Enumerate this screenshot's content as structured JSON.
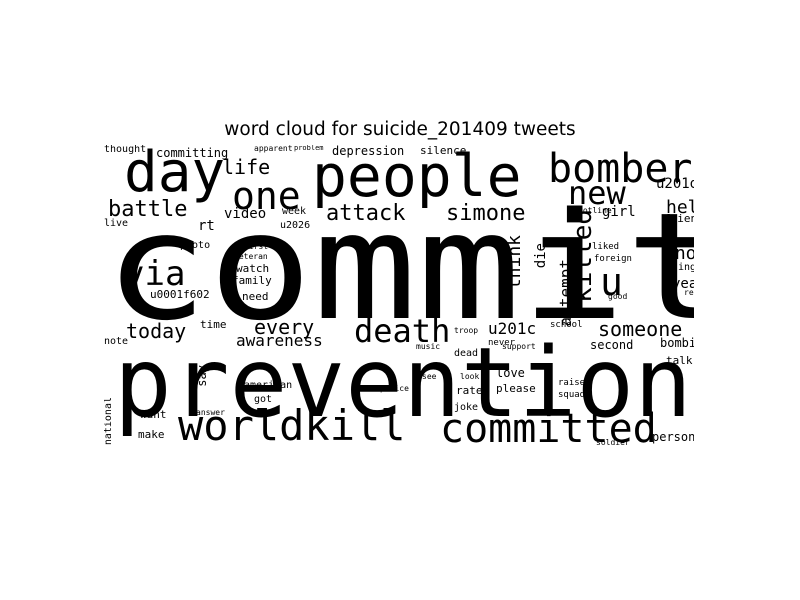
{
  "title": "word cloud for suicide_201409 tweets",
  "words": [
    "commit",
    "prevention",
    "people",
    "day",
    "bomber",
    "worldkill",
    "committed",
    "one",
    "new",
    "via",
    "death",
    "killed",
    "u",
    "battle",
    "attack",
    "simone",
    "life",
    "today",
    "every",
    "someone",
    "man",
    "know",
    "help",
    "u201d",
    "awareness",
    "think",
    "attempt",
    "die",
    "year",
    "girl",
    "u201c",
    "rt",
    "video",
    "depression",
    "committing",
    "thought",
    "silence",
    "u0001f602",
    "need",
    "family",
    "watch",
    "u2019",
    "u2026",
    "week",
    "time",
    "note",
    "second",
    "bombing",
    "love",
    "please",
    "rate",
    "say",
    "want",
    "make",
    "american",
    "person",
    "talk",
    "dead",
    "never",
    "support",
    "school",
    "national",
    "friend",
    "singer",
    "report",
    "joke",
    "soldier",
    "music",
    "photo",
    "veteran",
    "first",
    "live",
    "apparent",
    "problem",
    "answer",
    "got",
    "liked",
    "foreign",
    "hotline",
    "good",
    "police",
    "raise",
    "squad",
    "troop",
    "look",
    "see"
  ]
}
